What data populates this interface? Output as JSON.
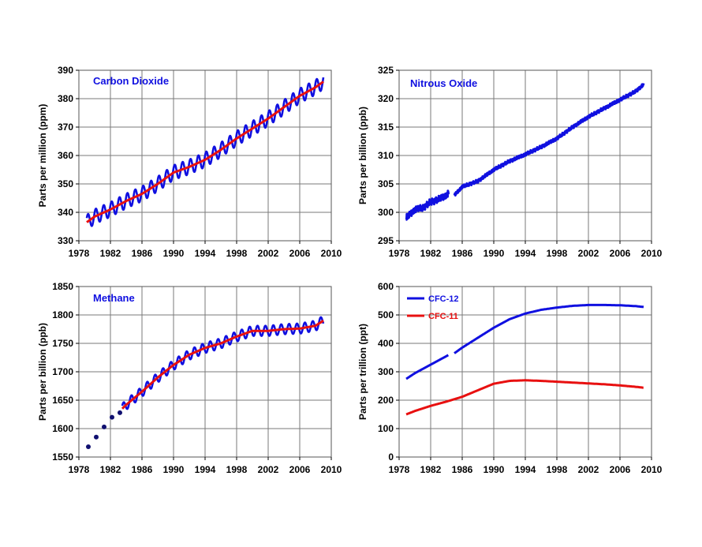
{
  "chart_data": [
    {
      "type": "line",
      "title": "Carbon Dioxide",
      "ylabel": "Parts per million (ppm)",
      "xlim": [
        1978,
        2010
      ],
      "ylim": [
        330,
        390
      ],
      "xticks": [
        "1978",
        "1982",
        "1986",
        "1990",
        "1994",
        "1998",
        "2002",
        "2006",
        "2010"
      ],
      "yticks": [
        "330",
        "340",
        "350",
        "360",
        "370",
        "380",
        "390"
      ],
      "grid": true,
      "series": [
        {
          "color": "#1010e0",
          "seasonal_amplitude": 2.6,
          "x": [
            1979,
            1980,
            1982,
            1984,
            1986,
            1988,
            1990,
            1992,
            1994,
            1996,
            1998,
            2000,
            2002,
            2004,
            2006,
            2008,
            2009
          ],
          "y": [
            336.5,
            338.5,
            341,
            344,
            346.5,
            350,
            354,
            356,
            358.5,
            362,
            366,
            369.5,
            373,
            377,
            381,
            384,
            386
          ]
        },
        {
          "color": "#e81010",
          "x": [
            1979,
            1980,
            1982,
            1984,
            1986,
            1988,
            1990,
            1992,
            1994,
            1996,
            1998,
            2000,
            2002,
            2004,
            2006,
            2008,
            2009
          ],
          "y": [
            336.5,
            338.5,
            341,
            344,
            346.5,
            350,
            354,
            356,
            358.5,
            362,
            366,
            369.5,
            373,
            377,
            381,
            384,
            386
          ]
        }
      ]
    },
    {
      "type": "line",
      "title": "Nitrous Oxide",
      "ylabel": "Parts per billion (ppb)",
      "xlim": [
        1978,
        2010
      ],
      "ylim": [
        295,
        325
      ],
      "xticks": [
        "1978",
        "1982",
        "1986",
        "1990",
        "1994",
        "1998",
        "2002",
        "2006",
        "2010"
      ],
      "yticks": [
        "295",
        "300",
        "305",
        "310",
        "315",
        "320",
        "325"
      ],
      "grid": true,
      "series": [
        {
          "color": "#1010e0",
          "noise": 0.6,
          "x": [
            1978.9,
            1980,
            1981,
            1982,
            1983,
            1984,
            1984.3
          ],
          "y": [
            299,
            300.5,
            300.8,
            301.8,
            302.3,
            303,
            303.5
          ]
        },
        {
          "color": "#1010e0",
          "noise": 0.3,
          "x": [
            1985,
            1986,
            1987,
            1988,
            1990,
            1992,
            1994,
            1996,
            1998,
            2000,
            2002,
            2004,
            2006,
            2008,
            2009
          ],
          "y": [
            303,
            304.5,
            305,
            305.5,
            307.5,
            309,
            310.2,
            311.5,
            313,
            315,
            316.8,
            318.3,
            319.8,
            321.3,
            322.5
          ]
        }
      ]
    },
    {
      "type": "line",
      "title": "Methane",
      "ylabel": "Parts per billion (ppb)",
      "xlim": [
        1978,
        2010
      ],
      "ylim": [
        1550,
        1850
      ],
      "xticks": [
        "1978",
        "1982",
        "1986",
        "1990",
        "1994",
        "1998",
        "2002",
        "2006",
        "2010"
      ],
      "yticks": [
        "1550",
        "1600",
        "1650",
        "1700",
        "1750",
        "1800",
        "1850"
      ],
      "grid": true,
      "points": {
        "color": "#101070",
        "x": [
          1979.2,
          1980.2,
          1981.2,
          1982.2,
          1983.2
        ],
        "y": [
          1568,
          1585,
          1603,
          1620,
          1628
        ]
      },
      "series": [
        {
          "color": "#1010e0",
          "seasonal_amplitude": 9,
          "x": [
            1983.5,
            1984,
            1986,
            1988,
            1990,
            1992,
            1994,
            1996,
            1998,
            2000,
            2002,
            2004,
            2006,
            2008,
            2009
          ],
          "y": [
            1635,
            1642,
            1665,
            1690,
            1712,
            1730,
            1742,
            1750,
            1762,
            1772,
            1772,
            1775,
            1776,
            1781,
            1790
          ]
        },
        {
          "color": "#e81010",
          "x": [
            1983.5,
            1984,
            1986,
            1988,
            1990,
            1992,
            1994,
            1996,
            1998,
            2000,
            2002,
            2004,
            2006,
            2008,
            2009
          ],
          "y": [
            1635,
            1642,
            1665,
            1690,
            1712,
            1730,
            1742,
            1750,
            1762,
            1772,
            1772,
            1775,
            1776,
            1781,
            1790
          ]
        }
      ]
    },
    {
      "type": "line",
      "ylabel": "Parts per trillion (ppt)",
      "xlim": [
        1978,
        2010
      ],
      "ylim": [
        0,
        600
      ],
      "xticks": [
        "1978",
        "1982",
        "1986",
        "1990",
        "1994",
        "1998",
        "2002",
        "2006",
        "2010"
      ],
      "yticks": [
        "0",
        "100",
        "200",
        "300",
        "400",
        "500",
        "600"
      ],
      "grid": true,
      "legend": "top-left",
      "series": [
        {
          "name": "CFC-12",
          "color": "#1010e0",
          "x": [
            1978.9,
            1980,
            1982,
            1984,
            1984.3
          ],
          "y": [
            275,
            295,
            325,
            355,
            360
          ]
        },
        {
          "color": "#1010e0",
          "x": [
            1985,
            1986,
            1988,
            1990,
            1992,
            1994,
            1996,
            1998,
            2000,
            2002,
            2004,
            2006,
            2008,
            2009
          ],
          "y": [
            365,
            385,
            420,
            455,
            485,
            505,
            518,
            526,
            532,
            535,
            535,
            534,
            531,
            528
          ]
        },
        {
          "name": "CFC-11",
          "color": "#e81010",
          "x": [
            1978.9,
            1980,
            1982,
            1984,
            1986,
            1988,
            1990,
            1992,
            1994,
            1996,
            1998,
            2000,
            2002,
            2004,
            2006,
            2008,
            2009
          ],
          "y": [
            150,
            162,
            180,
            195,
            212,
            235,
            258,
            268,
            270,
            268,
            265,
            262,
            259,
            256,
            252,
            247,
            244
          ]
        }
      ]
    }
  ]
}
